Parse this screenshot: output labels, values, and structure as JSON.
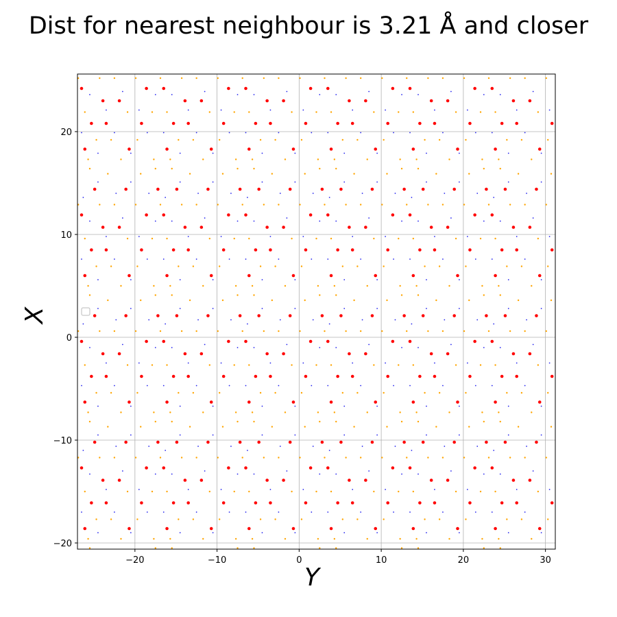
{
  "chart_data": {
    "type": "scatter",
    "title": "Dist for nearest neighbour is 3.21 Å and closer",
    "xlabel": "Y",
    "ylabel": "X",
    "xlim": [
      -27,
      31.2
    ],
    "ylim": [
      -20.6,
      25.6
    ],
    "xticks": [
      -20,
      -10,
      0,
      10,
      20,
      30
    ],
    "yticks": [
      -20,
      -10,
      0,
      10,
      20
    ],
    "xtick_labels": [
      "−20",
      "−10",
      "0",
      "10",
      "20",
      "30"
    ],
    "ytick_labels": [
      "−20",
      "−10",
      "0",
      "10",
      "20"
    ],
    "grid": true,
    "legend": {
      "placement": "center-left",
      "entries": []
    },
    "lattice": {
      "description": "periodic honeycomb-like atom positions (Y, X) repeating with period 10.0 in Y and 12.3 in X",
      "period_y": 10.0,
      "period_x": 12.3,
      "origin_y": -26.5,
      "origin_x": -20.0
    },
    "series": [
      {
        "color": "#ff0000",
        "marker_radius": 2.3,
        "motif": [
          [
            0.4,
            1.4
          ],
          [
            1.2,
            3.9
          ],
          [
            3.0,
            3.9
          ],
          [
            0.0,
            7.3
          ],
          [
            2.6,
            6.1
          ],
          [
            4.6,
            6.1
          ],
          [
            5.8,
            1.4
          ],
          [
            7.3,
            3.9
          ],
          [
            7.9,
            7.3
          ],
          [
            5.4,
            9.8
          ],
          [
            1.6,
            9.8
          ],
          [
            9.3,
            9.8
          ]
        ]
      },
      {
        "color": "#ffa500",
        "marker_radius": 1.2,
        "motif": [
          [
            0.8,
            0.4
          ],
          [
            1.8,
            2.3
          ],
          [
            3.6,
            2.3
          ],
          [
            4.8,
            0.4
          ],
          [
            6.8,
            2.3
          ],
          [
            8.8,
            0.4
          ],
          [
            0.4,
            5.0
          ],
          [
            2.2,
            8.3
          ],
          [
            4.0,
            8.3
          ],
          [
            5.6,
            5.0
          ],
          [
            6.6,
            8.3
          ],
          [
            8.6,
            5.0
          ],
          [
            9.6,
            8.3
          ],
          [
            3.2,
            11.3
          ],
          [
            7.2,
            11.3
          ],
          [
            1.0,
            11.8
          ],
          [
            9.0,
            11.8
          ]
        ]
      },
      {
        "color": "#2222ee",
        "marker_radius": 0.9,
        "motif": [
          [
            0.0,
            3.0
          ],
          [
            2.0,
            1.0
          ],
          [
            4.0,
            3.0
          ],
          [
            6.0,
            1.0
          ],
          [
            8.0,
            3.0
          ],
          [
            1.0,
            6.7
          ],
          [
            3.0,
            5.2
          ],
          [
            5.0,
            7.0
          ],
          [
            7.0,
            5.2
          ],
          [
            9.0,
            6.7
          ],
          [
            2.0,
            10.5
          ],
          [
            6.0,
            10.5
          ],
          [
            4.2,
            9.4
          ],
          [
            8.2,
            9.4
          ],
          [
            0.2,
            9.0
          ]
        ]
      }
    ]
  }
}
